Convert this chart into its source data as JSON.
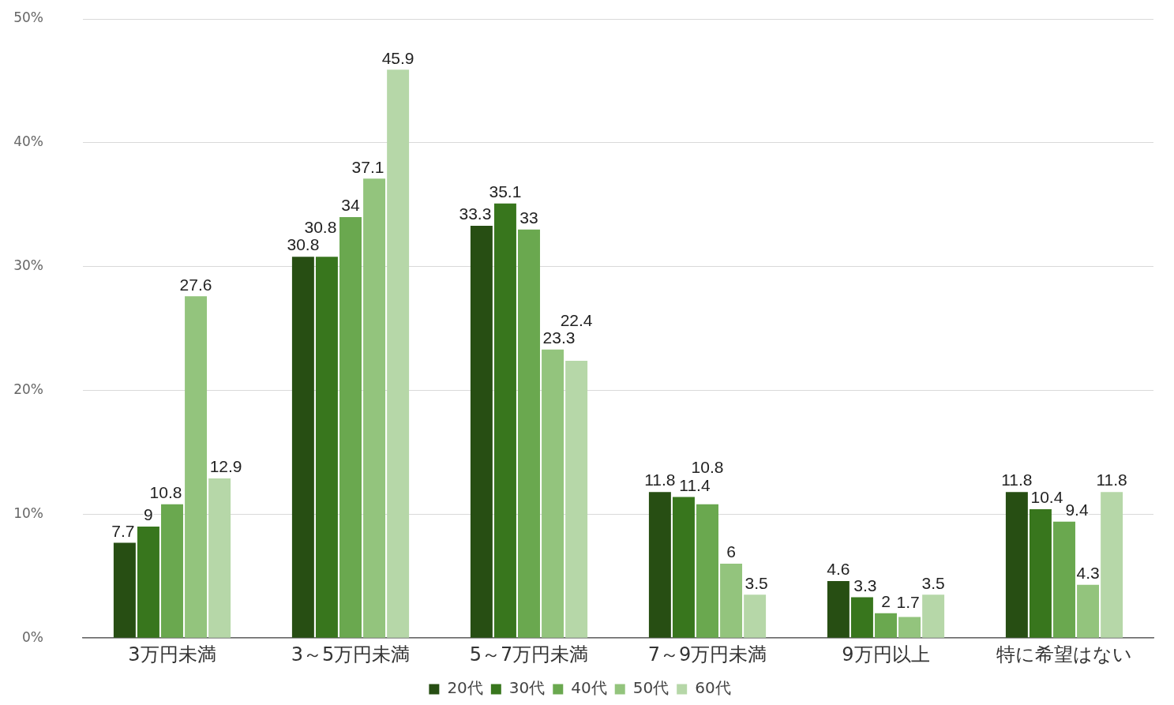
{
  "chart_data": {
    "type": "bar",
    "categories": [
      "3万円未満",
      "3～5万円未満",
      "5～7万円未満",
      "7～9万円未満",
      "9万円以上",
      "特に希望はない"
    ],
    "series": [
      {
        "name": "20代",
        "color": "#274e13",
        "values": [
          7.7,
          30.8,
          33.3,
          11.8,
          4.6,
          11.8
        ]
      },
      {
        "name": "30代",
        "color": "#38761d",
        "values": [
          9,
          30.8,
          35.1,
          11.4,
          3.3,
          10.4
        ]
      },
      {
        "name": "40代",
        "color": "#6aa84f",
        "values": [
          10.8,
          34,
          33,
          10.8,
          2,
          9.4
        ]
      },
      {
        "name": "50代",
        "color": "#93c47d",
        "values": [
          27.6,
          37.1,
          23.3,
          6,
          1.7,
          4.3
        ]
      },
      {
        "name": "60代",
        "color": "#b6d7a8",
        "values": [
          12.9,
          45.9,
          22.4,
          3.5,
          3.5,
          11.8
        ]
      }
    ],
    "ylim": [
      0,
      50
    ],
    "yticks": [
      {
        "value": 0,
        "label": "0%"
      },
      {
        "value": 10,
        "label": "10%"
      },
      {
        "value": 20,
        "label": "20%"
      },
      {
        "value": 30,
        "label": "30%"
      },
      {
        "value": 40,
        "label": "40%"
      },
      {
        "value": 50,
        "label": "50%"
      }
    ],
    "grid": "y",
    "legend": "bottom",
    "data_labels": true
  }
}
